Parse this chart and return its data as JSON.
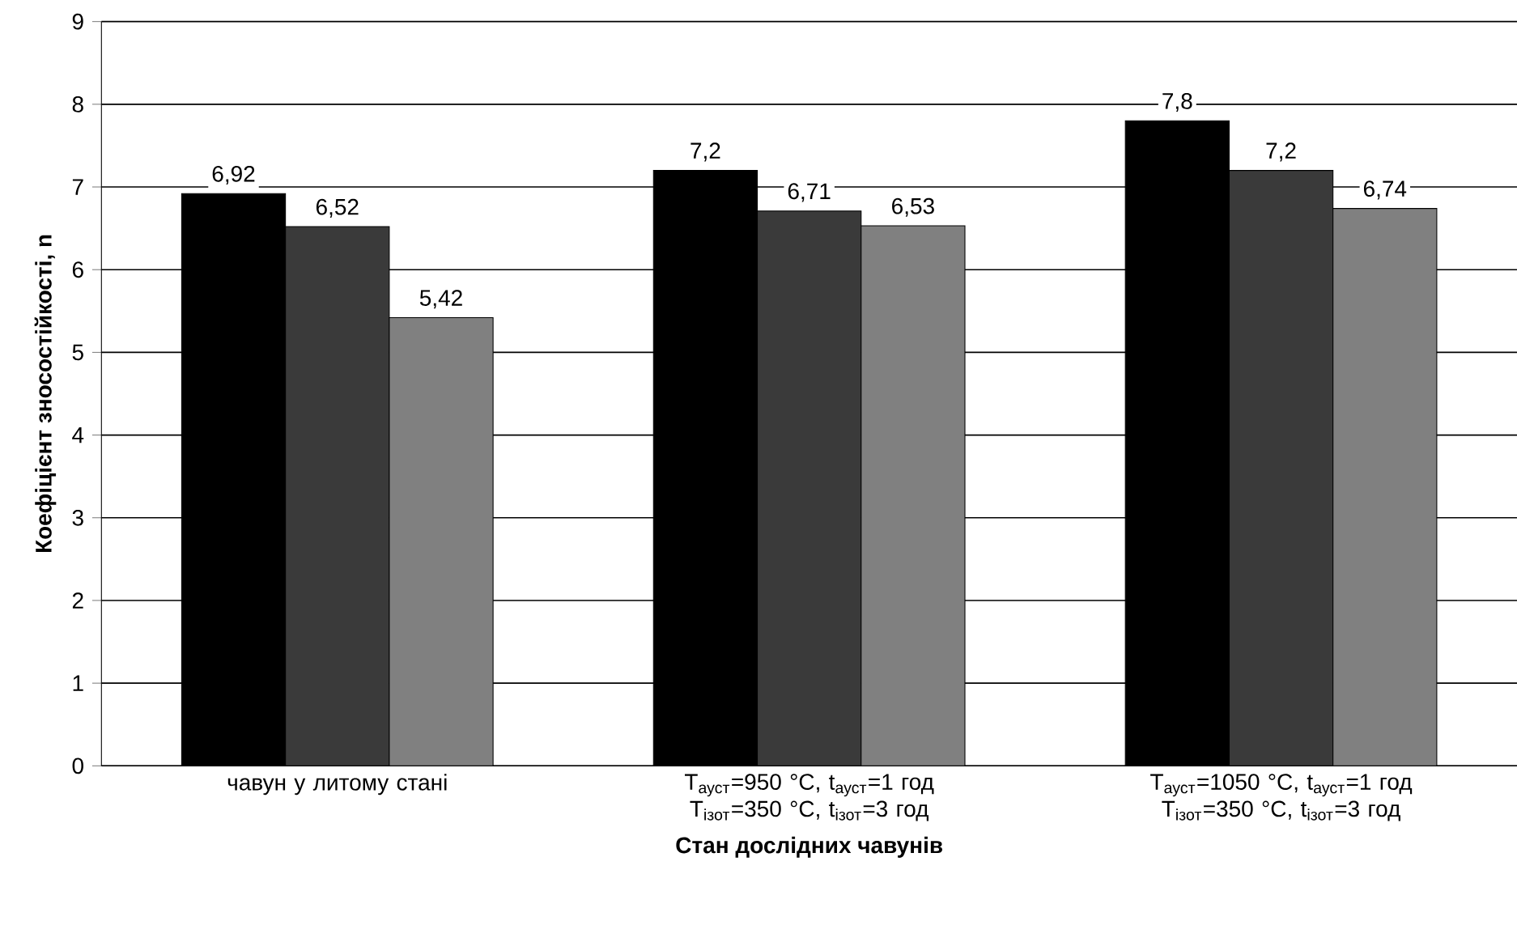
{
  "chart_data": {
    "type": "bar",
    "xlabel": "Стан дослідних чавунів",
    "ylabel": "Коефіцієнт зносостійкості, n",
    "categories": [
      "чавун у литому стані",
      "Т$_{ауст}$=950 °C, t$_{ауст}$=1 год Т$_{ізот}$=350  °C, t$_{ізот}$=3 год",
      "Т$_{ауст}$=1050  °C, t$_{ауст}$=1 год Т$_{ізот}$=350  °C, t$_{ізот}$=3 год"
    ],
    "series": [
      {
        "color": "#000000",
        "values": [
          6.92,
          7.2,
          7.8
        ],
        "value_labels": [
          "6,92",
          "7,2",
          "7,8"
        ]
      },
      {
        "color": "#3a3a3a",
        "values": [
          6.52,
          6.71,
          7.2
        ],
        "value_labels": [
          "6,52",
          "6,71",
          "7,2"
        ]
      },
      {
        "color": "#808080",
        "values": [
          5.42,
          6.53,
          6.74
        ],
        "value_labels": [
          "5,42",
          "6,53",
          "6,74"
        ]
      }
    ],
    "ylim": [
      0,
      9
    ],
    "yticks": [
      0,
      1,
      2,
      3,
      4,
      5,
      6,
      7,
      8,
      9
    ],
    "grid": "y",
    "legend": false
  }
}
